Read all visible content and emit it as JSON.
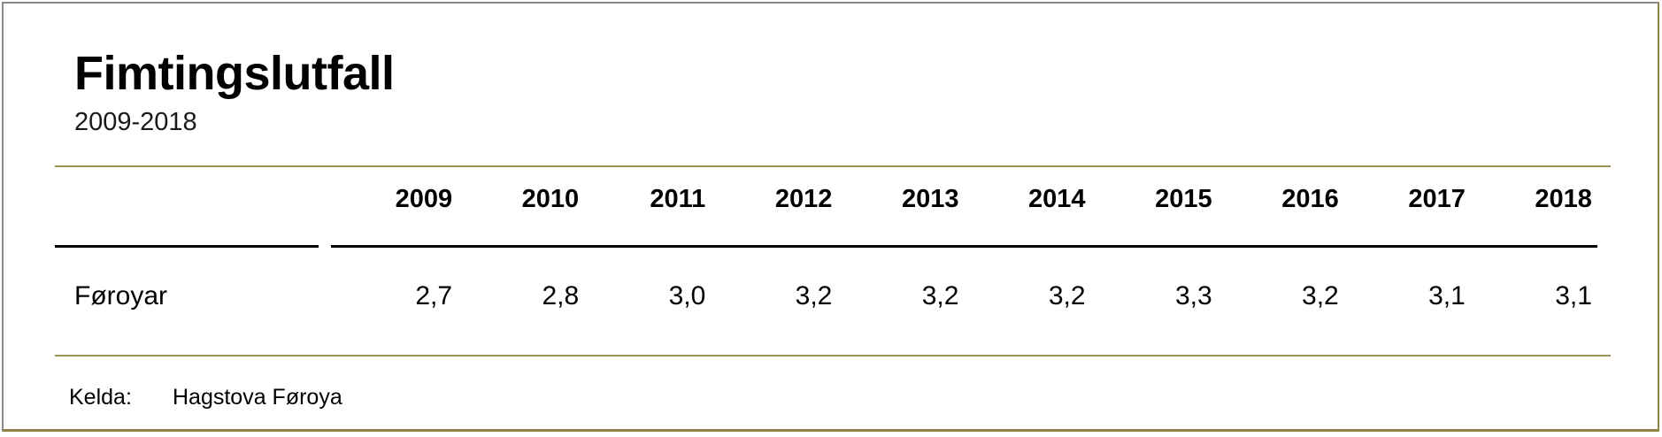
{
  "header": {
    "title": "Fimtingslutfall",
    "subtitle": "2009-2018"
  },
  "table": {
    "years": [
      "2009",
      "2010",
      "2011",
      "2012",
      "2013",
      "2014",
      "2015",
      "2016",
      "2017",
      "2018"
    ],
    "rows": [
      {
        "label": "Føroyar",
        "values": [
          "2,7",
          "2,8",
          "3,0",
          "3,2",
          "3,2",
          "3,2",
          "3,3",
          "3,2",
          "3,1",
          "3,1"
        ]
      }
    ]
  },
  "footer": {
    "source_label": "Kelda:",
    "source_name": "Hagstova Føroya"
  },
  "colors": {
    "rule_gold": "#9c9155",
    "border_gold": "#8e8444",
    "border_gray": "#8a8a8a",
    "text": "#000000"
  },
  "chart_data": {
    "type": "table",
    "title": "Fimtingslutfall",
    "subtitle": "2009-2018",
    "categories": [
      "2009",
      "2010",
      "2011",
      "2012",
      "2013",
      "2014",
      "2015",
      "2016",
      "2017",
      "2018"
    ],
    "series": [
      {
        "name": "Føroyar",
        "values": [
          2.7,
          2.8,
          3.0,
          3.2,
          3.2,
          3.2,
          3.3,
          3.2,
          3.1,
          3.1
        ]
      }
    ],
    "source": "Kelda: Hagstova Føroya",
    "layout": {
      "header_row_bold": true,
      "values_right_aligned": true,
      "decimal_separator": ","
    }
  }
}
